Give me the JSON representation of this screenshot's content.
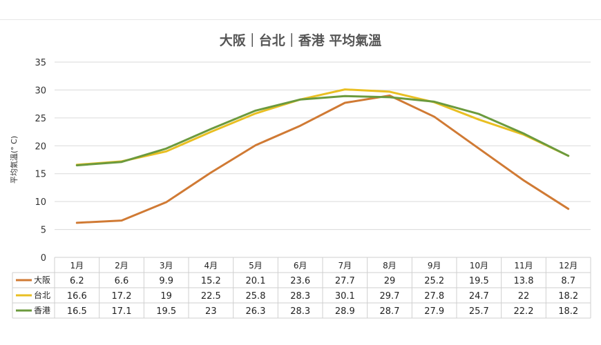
{
  "chart_data": {
    "type": "line",
    "title": "大阪｜台北｜香港 平均氣溫",
    "ylabel": "平均氣溫(° C)",
    "xlabel": "",
    "ylim": [
      0,
      35
    ],
    "yticks": [
      0,
      5,
      10,
      15,
      20,
      25,
      30,
      35
    ],
    "grid": true,
    "legend": "data-table",
    "categories": [
      "1月",
      "2月",
      "3月",
      "4月",
      "5月",
      "6月",
      "7月",
      "8月",
      "9月",
      "10月",
      "11月",
      "12月"
    ],
    "series": [
      {
        "name": "大阪",
        "color": "#d07a34",
        "values": [
          "6.2",
          "6.6",
          "9.9",
          "15.2",
          "20.1",
          "23.6",
          "27.7",
          "29",
          "25.2",
          "19.5",
          "13.8",
          "8.7"
        ]
      },
      {
        "name": "台北",
        "color": "#e9bf22",
        "values": [
          "16.6",
          "17.2",
          "19",
          "22.5",
          "25.8",
          "28.3",
          "30.1",
          "29.7",
          "27.8",
          "24.7",
          "22",
          "18.2"
        ]
      },
      {
        "name": "香港",
        "color": "#6b9a3e",
        "values": [
          "16.5",
          "17.1",
          "19.5",
          "23",
          "26.3",
          "28.3",
          "28.9",
          "28.7",
          "27.9",
          "25.7",
          "22.2",
          "18.2"
        ]
      }
    ]
  }
}
